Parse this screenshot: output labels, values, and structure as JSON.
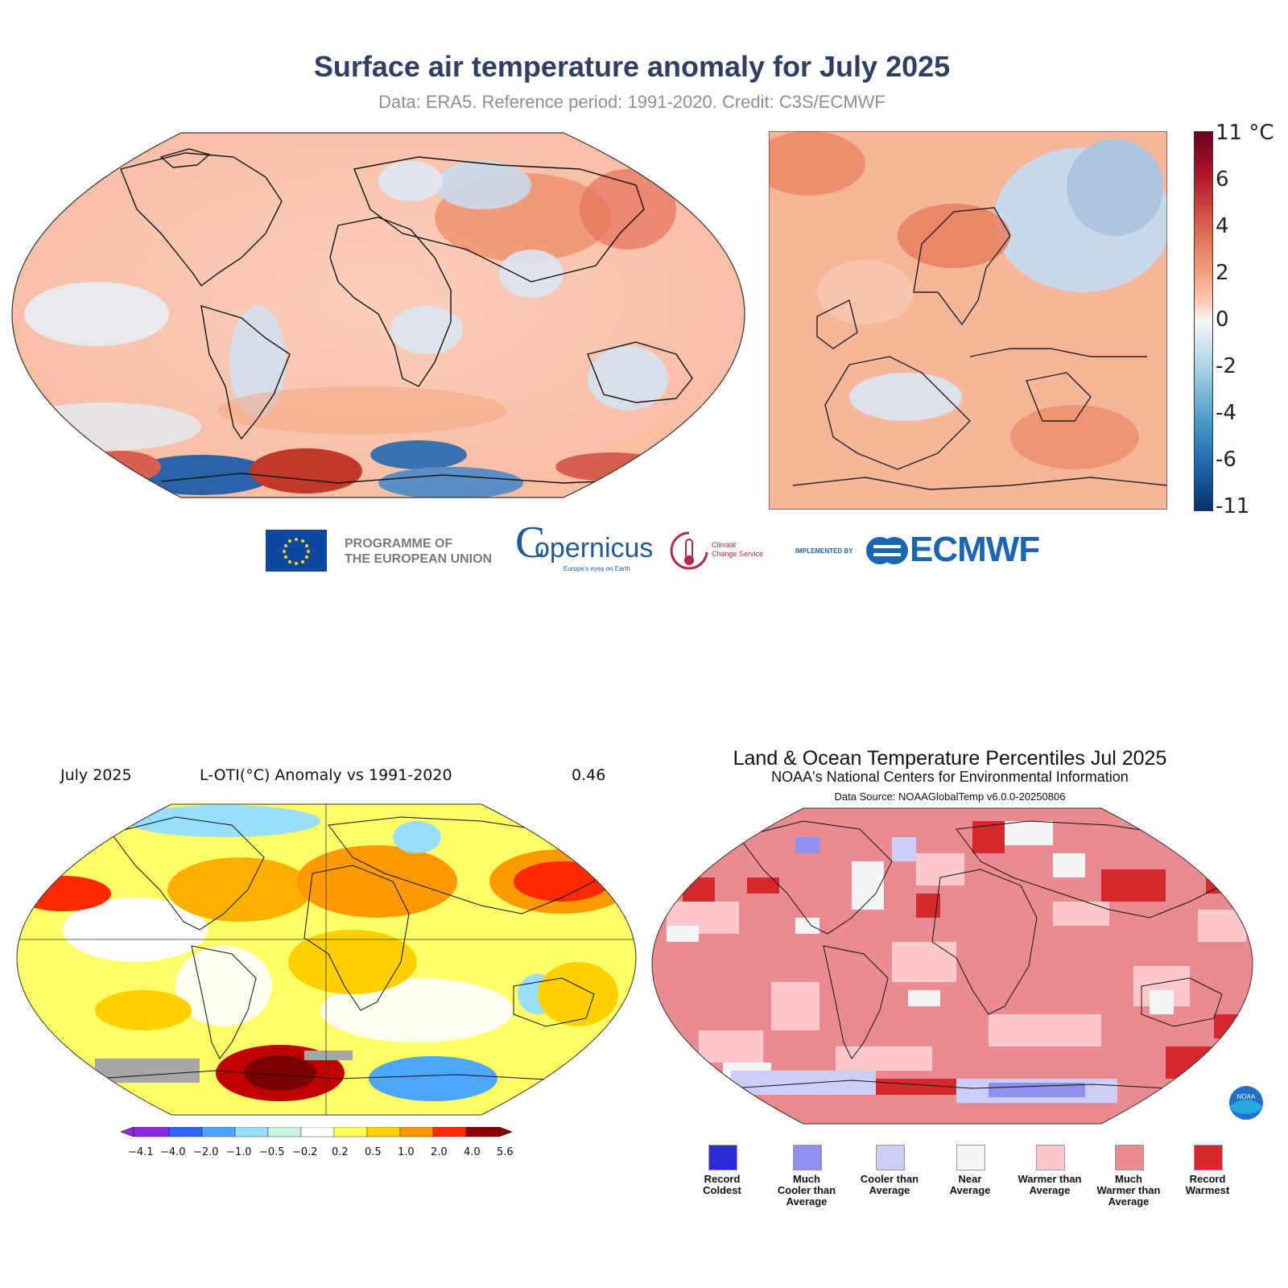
{
  "c3s": {
    "title": "Surface air temperature anomaly for July 2025",
    "subtitle": "Data: ERA5.  Reference period: 1991-2020.  Credit: C3S/ECMWF",
    "colorbar": {
      "unit_label": "11 °C",
      "ticks": [
        "6",
        "4",
        "2",
        "0",
        "-2",
        "-4",
        "-6",
        "-11"
      ],
      "colors": [
        "#08306b",
        "#2166ac",
        "#4393c3",
        "#92c5de",
        "#f7f7f7",
        "#fbd3bf",
        "#f4a582",
        "#d6604d",
        "#b2182b",
        "#67001f"
      ]
    },
    "logos": {
      "eu_line1": "PROGRAMME OF",
      "eu_line2": "THE EUROPEAN UNION",
      "copernicus": "opernicus",
      "copernicus_sub": "Europe's eyes on Earth",
      "c3s_line1": "Climate",
      "c3s_line2": "Change Service",
      "implemented_by": "IMPLEMENTED BY",
      "ecmwf": "ECMWF"
    }
  },
  "lotil": {
    "month": "July 2025",
    "title": "L-OTI(°C) Anomaly vs 1991-2020",
    "global_value": "0.46",
    "ticks": [
      "−4.1",
      "−4.0",
      "−2.0",
      "−1.0",
      "−0.5",
      "−0.2",
      "0.2",
      "0.5",
      "1.0",
      "2.0",
      "4.0",
      "5.6"
    ],
    "colors": [
      "#8a2be2",
      "#3366ff",
      "#4da6ff",
      "#99ddff",
      "#ccf2e0",
      "#ffffff",
      "#ffff55",
      "#ffd000",
      "#ff9900",
      "#ff2a00",
      "#8b0000"
    ]
  },
  "noaa": {
    "title": "Land & Ocean Temperature Percentiles Jul 2025",
    "subtitle": "NOAA's National Centers for Environmental Information",
    "source": "Data Source: NOAAGlobalTemp v6.0.0-20250806",
    "legend": [
      {
        "label_lines": [
          "Record",
          "Coldest"
        ],
        "color": "#2b2bd6"
      },
      {
        "label_lines": [
          "Much",
          "Cooler than",
          "Average"
        ],
        "color": "#8f8ff0"
      },
      {
        "label_lines": [
          "Cooler than",
          "Average"
        ],
        "color": "#cdcdfa"
      },
      {
        "label_lines": [
          "Near",
          "Average"
        ],
        "color": "#f5f5f5"
      },
      {
        "label_lines": [
          "Warmer than",
          "Average"
        ],
        "color": "#fbc9cc"
      },
      {
        "label_lines": [
          "Much",
          "Warmer than",
          "Average"
        ],
        "color": "#ea8c8f"
      },
      {
        "label_lines": [
          "Record",
          "Warmest"
        ],
        "color": "#d42a2f"
      }
    ],
    "badge": "NOAA"
  }
}
